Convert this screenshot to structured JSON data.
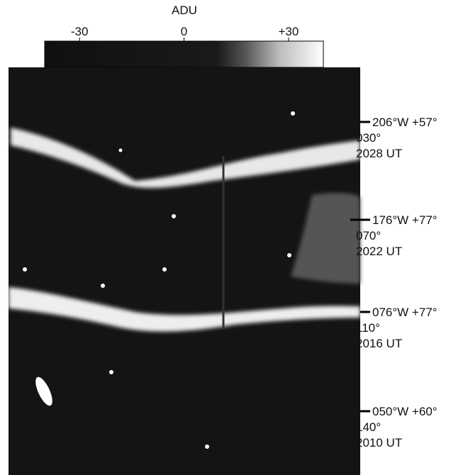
{
  "colorbar": {
    "label": "ADU",
    "range": [
      -40,
      40
    ],
    "ticks": [
      -30,
      0,
      {
        "value": 30,
        "label": "+30"
      }
    ]
  },
  "annotations": [
    {
      "position": "206°W +57°",
      "angle": "030°",
      "time": "2028 UT"
    },
    {
      "position": "176°W +77°",
      "angle": "070°",
      "time": "2022 UT"
    },
    {
      "position": "076°W +77°",
      "angle": "110°",
      "time": "2016 UT"
    },
    {
      "position": "050°W +60°",
      "angle": "140°",
      "time": "2010 UT"
    }
  ]
}
